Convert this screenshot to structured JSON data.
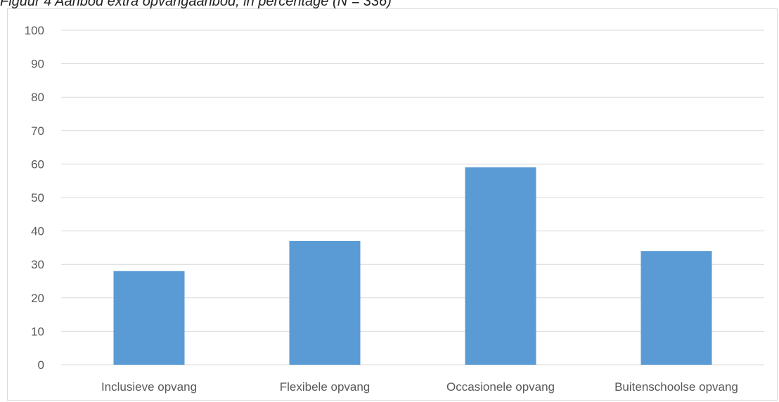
{
  "caption": "Figuur 4  Aanbod extra opvangaanbod, in percentage (N = 336)",
  "chart_data": {
    "type": "bar",
    "title": "",
    "xlabel": "",
    "ylabel": "",
    "categories": [
      "Inclusieve opvang",
      "Flexibele opvang",
      "Occasionele opvang",
      "Buitenschoolse opvang"
    ],
    "values": [
      28,
      37,
      59,
      34
    ],
    "ylim": [
      0,
      100
    ],
    "yticks": [
      0,
      10,
      20,
      30,
      40,
      50,
      60,
      70,
      80,
      90,
      100
    ],
    "grid": true,
    "legend": "none",
    "bar_color": "#5b9bd5",
    "grid_color": "#d9d9d9",
    "text_color": "#595959"
  }
}
